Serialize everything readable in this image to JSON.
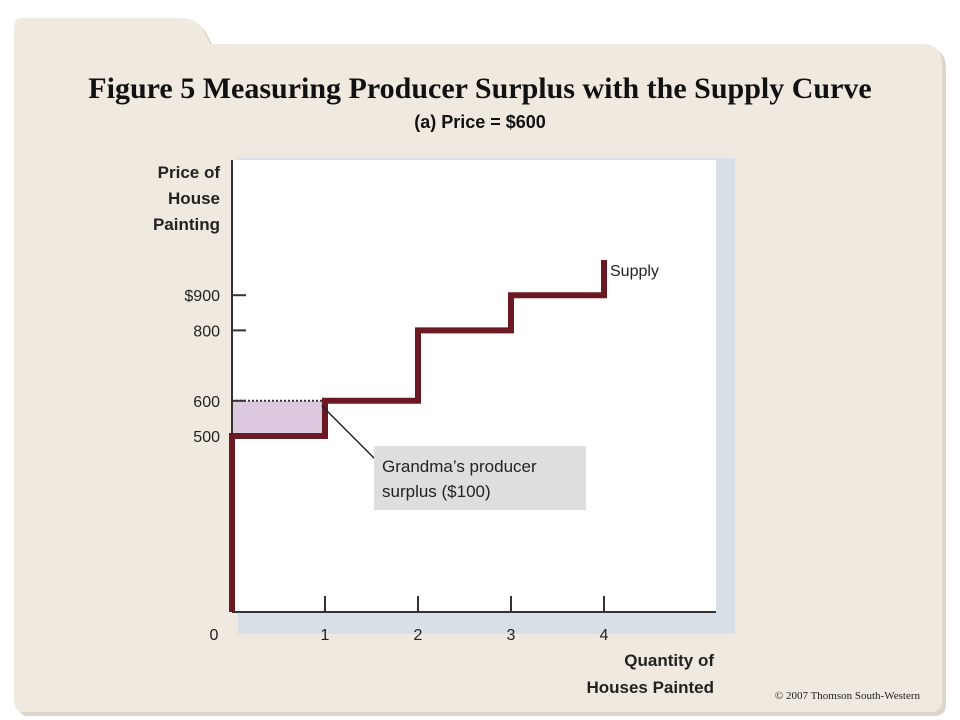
{
  "title": "Figure 5 Measuring Producer Surplus with the Supply Curve",
  "subtitle": "(a) Price = $600",
  "copyright": "© 2007 Thomson South-Western",
  "colors": {
    "supply": "#6b1a24",
    "surplus_fill": "#dcc8df",
    "background_panel": "#efe9df",
    "plot_bg": "#ffffff"
  },
  "chart_data": {
    "type": "line",
    "title": "Figure 5 Measuring Producer Surplus with the Supply Curve",
    "subtitle": "(a) Price = $600",
    "ylabel_lines": [
      "Price of",
      "House",
      "Painting"
    ],
    "xlabel_lines": [
      "Quantity of",
      "Houses Painted"
    ],
    "xlim": [
      0,
      5
    ],
    "ylim": [
      0,
      1100
    ],
    "grid": false,
    "x_ticks": [
      {
        "value": 0,
        "label": "0"
      },
      {
        "value": 1,
        "label": "1"
      },
      {
        "value": 2,
        "label": "2"
      },
      {
        "value": 3,
        "label": "3"
      },
      {
        "value": 4,
        "label": "4"
      }
    ],
    "y_ticks": [
      {
        "value": 500,
        "label": "500"
      },
      {
        "value": 600,
        "label": "600"
      },
      {
        "value": 800,
        "label": "800"
      },
      {
        "value": 900,
        "label": "$900"
      }
    ],
    "series": [
      {
        "name": "Supply",
        "step": true,
        "points": [
          [
            0,
            0
          ],
          [
            0,
            500
          ],
          [
            1,
            500
          ],
          [
            1,
            600
          ],
          [
            2,
            600
          ],
          [
            2,
            800
          ],
          [
            3,
            800
          ],
          [
            3,
            900
          ],
          [
            4,
            900
          ],
          [
            4,
            1000
          ]
        ]
      }
    ],
    "price": 600,
    "surplus_region": {
      "x": [
        0,
        1
      ],
      "y": [
        500,
        600
      ]
    },
    "annotations": [
      {
        "lines": [
          "Grandma’s producer",
          "surplus ($100)"
        ],
        "points_to": [
          0.9,
          575
        ]
      }
    ]
  }
}
